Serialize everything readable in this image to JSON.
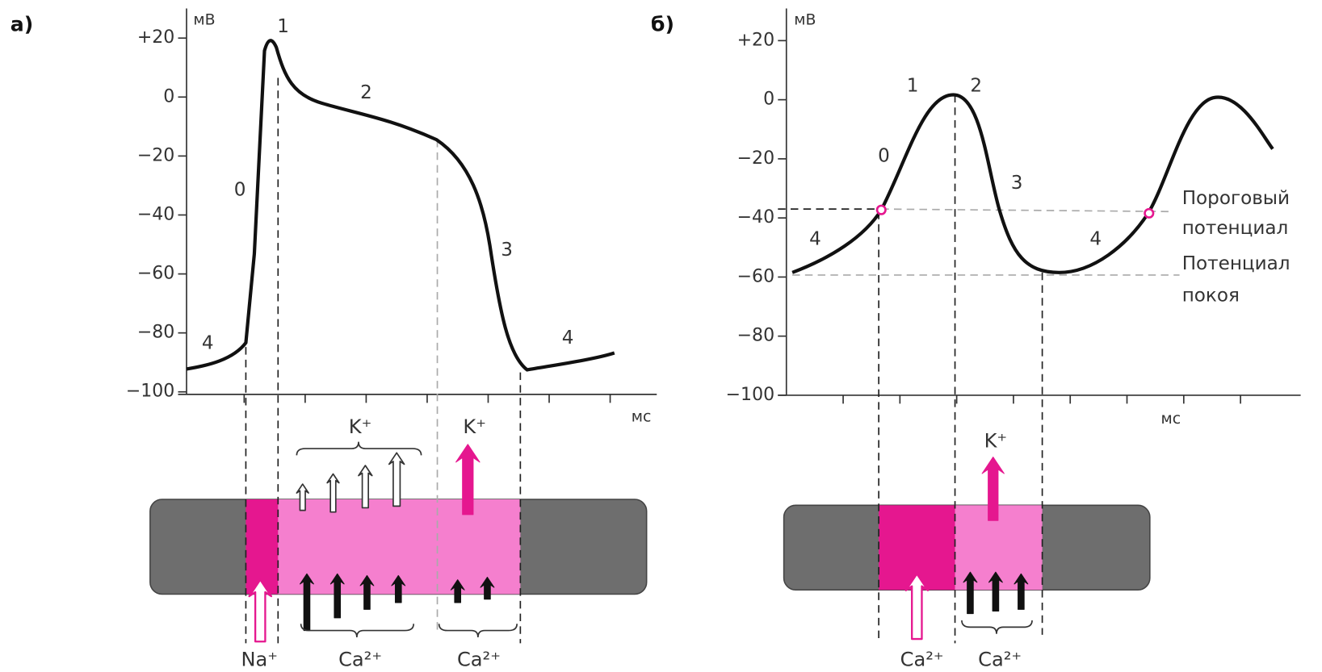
{
  "panels": [
    {
      "label": "а)",
      "y_unit": "мВ",
      "x_unit": "мс",
      "yticks": [
        {
          "value": 20,
          "label": "+20"
        },
        0,
        {
          "value": -20,
          "label": "−20"
        },
        {
          "value": -40,
          "label": "−40"
        },
        {
          "value": -60,
          "label": "−60"
        },
        {
          "value": -80,
          "label": "−80"
        },
        {
          "value": -100,
          "label": "−100"
        }
      ],
      "phases": [
        "0",
        "1",
        "2",
        "3",
        "4",
        "4"
      ],
      "ions": [
        "K⁺",
        "K⁺",
        "Na⁺",
        "Ca²⁺",
        "Ca²⁺"
      ]
    },
    {
      "label": "б)",
      "y_unit": "мВ",
      "x_unit": "мс",
      "yticks": [
        {
          "value": 20,
          "label": "+20"
        },
        0,
        {
          "value": -20,
          "label": "−20"
        },
        {
          "value": -40,
          "label": "−40"
        },
        {
          "value": -60,
          "label": "−60"
        },
        {
          "value": -80,
          "label": "−80"
        },
        {
          "value": -100,
          "label": "−100"
        }
      ],
      "phases": [
        "0",
        "1",
        "2",
        "3",
        "4",
        "4"
      ],
      "ions": [
        "K⁺",
        "Ca²⁺",
        "Ca²⁺"
      ],
      "annotations": [
        "Пороговый",
        "потенциал",
        "Потенциал",
        "покоя"
      ]
    }
  ]
}
